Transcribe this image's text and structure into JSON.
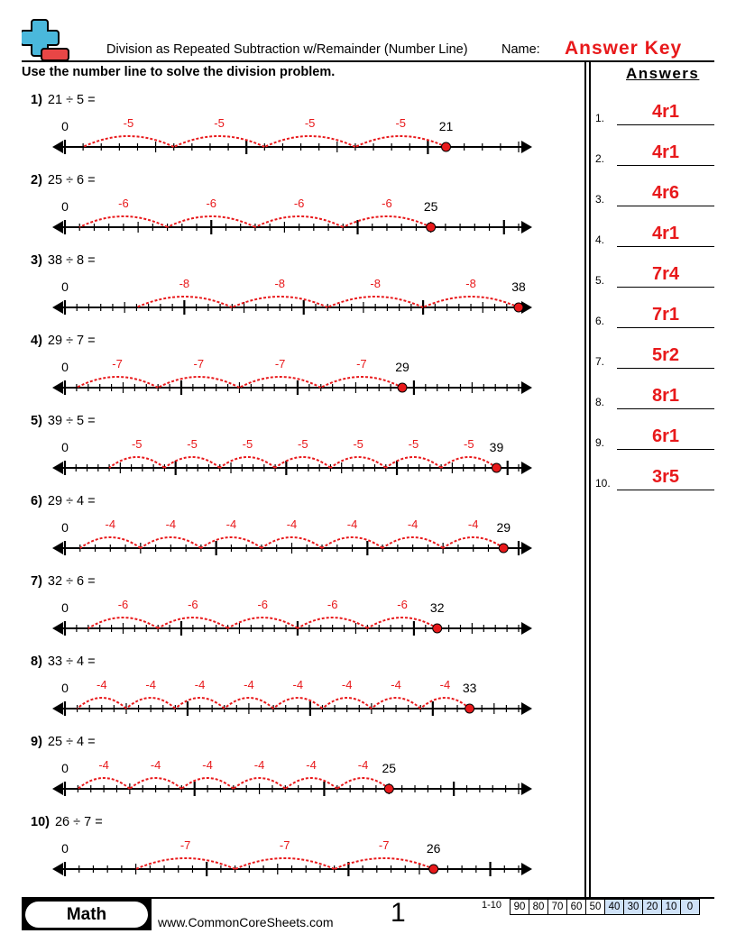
{
  "header": {
    "title": "Division as Repeated Subtraction w/Remainder (Number Line)",
    "name_label": "Name:",
    "name_value": "Answer Key",
    "instructions": "Use the number line to solve the division problem.",
    "answers_title": "Answers"
  },
  "colors": {
    "accent_red": "#e8191b",
    "logo_blue": "#4ab8dc",
    "score_blue": "#cfe2f8"
  },
  "problems": [
    {
      "num": "1)",
      "text": "21 ÷ 5 =",
      "dividend": 21,
      "divisor": 5,
      "jump_label": "-5",
      "line_max": 25
    },
    {
      "num": "2)",
      "text": "25 ÷ 6 =",
      "dividend": 25,
      "divisor": 6,
      "jump_label": "-6",
      "line_max": 31
    },
    {
      "num": "3)",
      "text": "38 ÷ 8 =",
      "dividend": 38,
      "divisor": 8,
      "jump_label": "-8",
      "line_max": 38
    },
    {
      "num": "4)",
      "text": "29 ÷ 7 =",
      "dividend": 29,
      "divisor": 7,
      "jump_label": "-7",
      "line_max": 39
    },
    {
      "num": "5)",
      "text": "39 ÷ 5 =",
      "dividend": 39,
      "divisor": 5,
      "jump_label": "-5",
      "line_max": 41
    },
    {
      "num": "6)",
      "text": "29 ÷ 4 =",
      "dividend": 29,
      "divisor": 4,
      "jump_label": "-4",
      "line_max": 30
    },
    {
      "num": "7)",
      "text": "32 ÷ 6 =",
      "dividend": 32,
      "divisor": 6,
      "jump_label": "-6",
      "line_max": 39
    },
    {
      "num": "8)",
      "text": "33 ÷ 4 =",
      "dividend": 33,
      "divisor": 4,
      "jump_label": "-4",
      "line_max": 37
    },
    {
      "num": "9)",
      "text": "25 ÷ 4 =",
      "dividend": 25,
      "divisor": 4,
      "jump_label": "-4",
      "line_max": 35
    },
    {
      "num": "10)",
      "text": "26 ÷ 7 =",
      "dividend": 26,
      "divisor": 7,
      "jump_label": "-7",
      "line_max": 32
    }
  ],
  "zero_label": "0",
  "answers": [
    {
      "num": "1.",
      "value": "4r1"
    },
    {
      "num": "2.",
      "value": "4r1"
    },
    {
      "num": "3.",
      "value": "4r6"
    },
    {
      "num": "4.",
      "value": "4r1"
    },
    {
      "num": "5.",
      "value": "7r4"
    },
    {
      "num": "6.",
      "value": "7r1"
    },
    {
      "num": "7.",
      "value": "5r2"
    },
    {
      "num": "8.",
      "value": "8r1"
    },
    {
      "num": "9.",
      "value": "6r1"
    },
    {
      "num": "10.",
      "value": "3r5"
    }
  ],
  "footer": {
    "subject": "Math",
    "site": "www.CommonCoreSheets.com",
    "page": "1",
    "score_label": "1-10",
    "scores": [
      "90",
      "80",
      "70",
      "60",
      "50",
      "40",
      "30",
      "20",
      "10",
      "0"
    ]
  }
}
